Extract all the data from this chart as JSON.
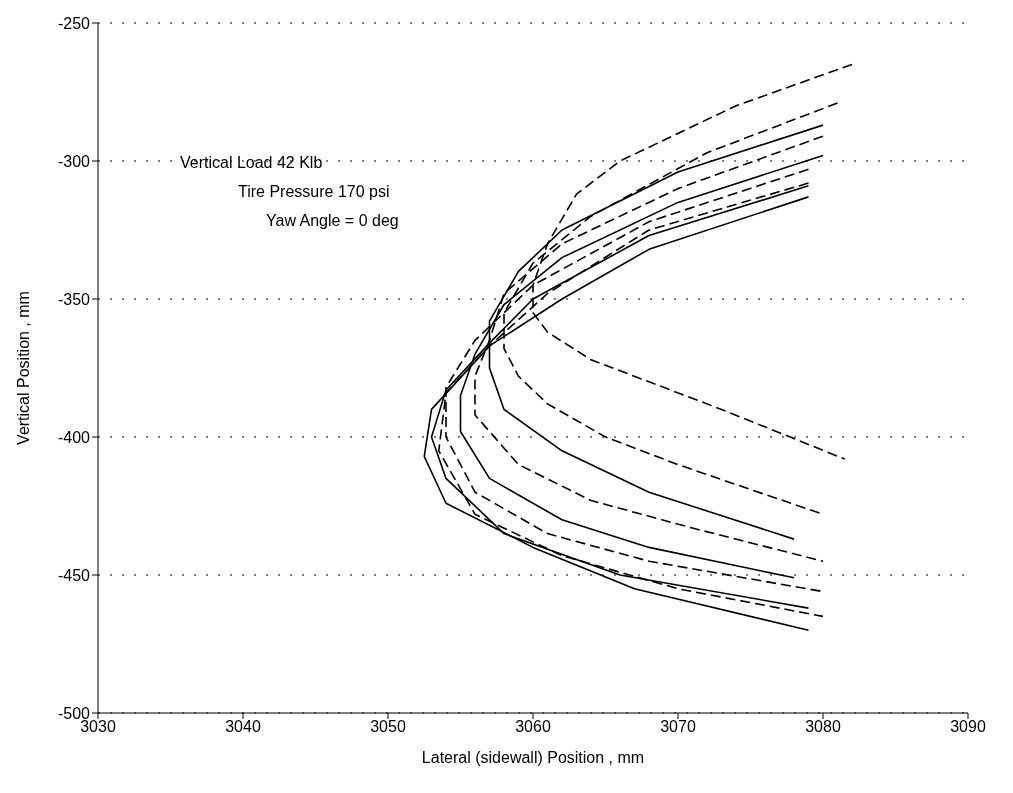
{
  "chart_data": {
    "type": "line",
    "xlabel": "Lateral (sidewall) Position , mm",
    "ylabel": "Vertical Position , mm",
    "annotations": [
      "Vertical Load 42 Klb",
      "Tire Pressure 170 psi",
      "Yaw Angle = 0 deg"
    ],
    "xlim": [
      3030,
      3090
    ],
    "xticks": [
      3030,
      3040,
      3050,
      3060,
      3070,
      3080,
      3090
    ],
    "ylim": [
      -500,
      -250
    ],
    "yticks": [
      -500,
      -450,
      -400,
      -350,
      -300,
      -250
    ],
    "grid": "y",
    "legend": false,
    "marker": "none",
    "series": [
      {
        "color": "#000000",
        "line_style": "dashed",
        "x": [
          3082,
          3074,
          3066,
          3063,
          3061,
          3060,
          3060,
          3061,
          3064,
          3068,
          3073,
          3081.5
        ],
        "values": [
          -265,
          -280,
          -300,
          -312,
          -330,
          -345,
          -355,
          -362,
          -372,
          -380,
          -390,
          -408
        ]
      },
      {
        "color": "#000000",
        "line_style": "dashed",
        "x": [
          3081,
          3072,
          3064,
          3060,
          3058,
          3058,
          3059,
          3061,
          3065,
          3070,
          3080
        ],
        "values": [
          -279,
          -297,
          -320,
          -337,
          -355,
          -368,
          -378,
          -388,
          -400,
          -410,
          -428
        ]
      },
      {
        "color": "#000000",
        "line_style": "solid",
        "x": [
          3080,
          3070,
          3062,
          3059,
          3057,
          3057,
          3058,
          3062,
          3068,
          3078
        ],
        "values": [
          -287,
          -304,
          -325,
          -340,
          -358,
          -375,
          -390,
          -405,
          -420,
          -437
        ]
      },
      {
        "color": "#000000",
        "line_style": "dashed",
        "x": [
          3080,
          3070,
          3062,
          3058,
          3057,
          3056,
          3056,
          3059,
          3064,
          3071,
          3080
        ],
        "values": [
          -291,
          -310,
          -330,
          -348,
          -365,
          -378,
          -392,
          -410,
          -423,
          -433,
          -445
        ]
      },
      {
        "color": "#000000",
        "line_style": "solid",
        "x": [
          3080,
          3070,
          3062,
          3058,
          3056,
          3055,
          3055,
          3057,
          3062,
          3068,
          3078
        ],
        "values": [
          -298,
          -315,
          -335,
          -352,
          -370,
          -385,
          -398,
          -415,
          -430,
          -440,
          -451
        ]
      },
      {
        "color": "#000000",
        "line_style": "dashed",
        "x": [
          3079,
          3068,
          3060,
          3056,
          3054,
          3054,
          3056,
          3061,
          3068,
          3080
        ],
        "values": [
          -303,
          -322,
          -345,
          -365,
          -382,
          -400,
          -420,
          -435,
          -445,
          -456
        ]
      },
      {
        "color": "#000000",
        "line_style": "solid",
        "x": [
          3079,
          3068,
          3060,
          3057,
          3054,
          3053,
          3054,
          3058,
          3066,
          3079
        ],
        "values": [
          -309,
          -327,
          -350,
          -366,
          -383,
          -400,
          -415,
          -435,
          -450,
          -462
        ]
      },
      {
        "color": "#000000",
        "line_style": "dashed",
        "x": [
          3079,
          3068,
          3061,
          3057,
          3054,
          3053.5,
          3056,
          3062,
          3070,
          3080
        ],
        "values": [
          -308,
          -325,
          -348,
          -367,
          -384,
          -405,
          -428,
          -443,
          -455,
          -465
        ]
      },
      {
        "color": "#000000",
        "line_style": "solid",
        "x": [
          3079,
          3068,
          3062,
          3057,
          3053,
          3052.5,
          3054,
          3060,
          3067,
          3079
        ],
        "values": [
          -313,
          -332,
          -350,
          -367,
          -390,
          -407,
          -424,
          -440,
          -455,
          -470
        ]
      }
    ]
  }
}
